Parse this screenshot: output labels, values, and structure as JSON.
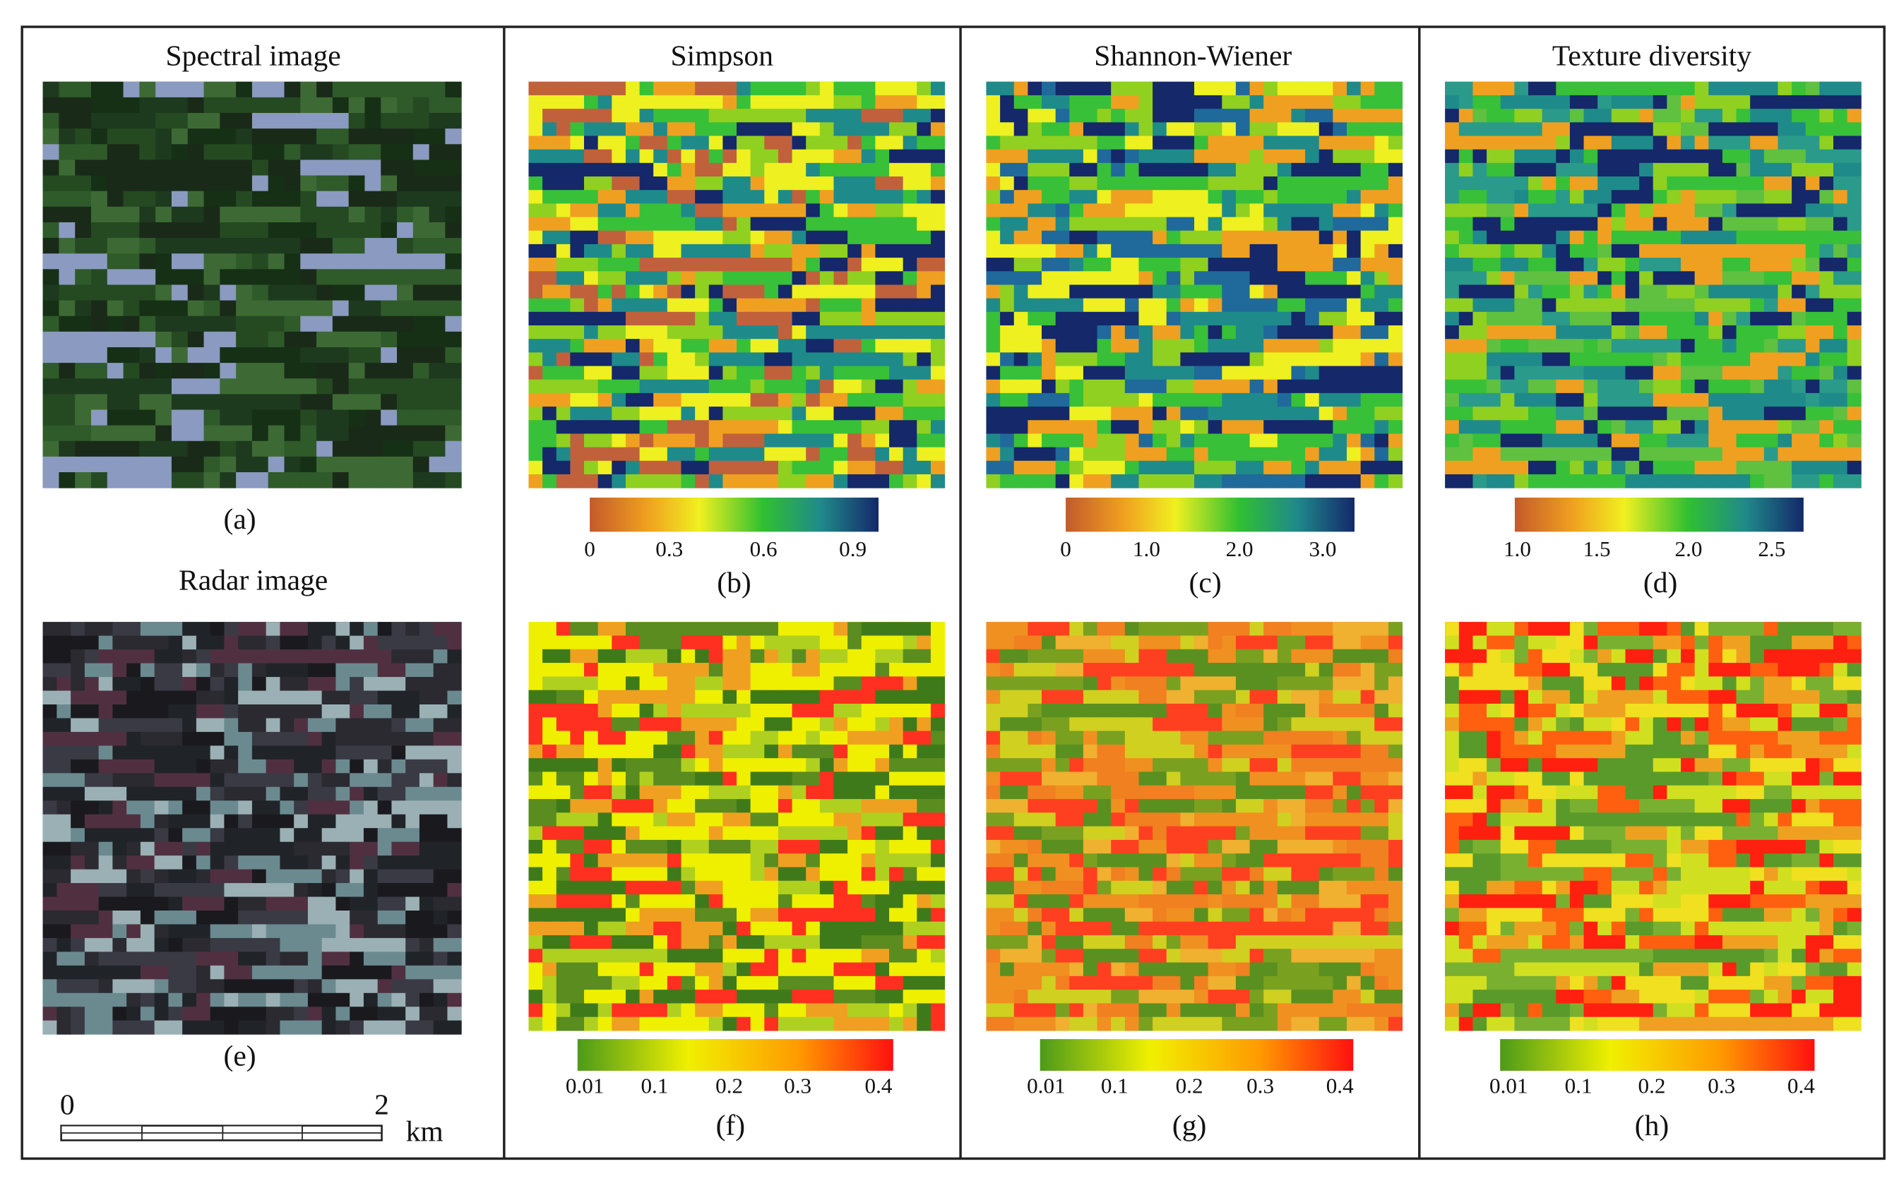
{
  "spectral": {
    "title": "Spectral image",
    "label": "(a)"
  },
  "radar": {
    "title": "Radar image",
    "label": "(e)"
  },
  "scale_bar": {
    "start": "0",
    "end": "2",
    "unit": "km"
  },
  "columns": [
    {
      "title": "Simpson",
      "top": {
        "ticks": [
          "0",
          "0.3",
          "0.6",
          "0.9"
        ],
        "label": "(b)"
      },
      "bottom": {
        "ticks": [
          "0.01",
          "0.1",
          "0.2",
          "0.3",
          "0.4"
        ],
        "label": "(f)"
      }
    },
    {
      "title": "Shannon-Wiener",
      "top": {
        "ticks": [
          "0",
          "1.0",
          "2.0",
          "3.0"
        ],
        "label": "(c)"
      },
      "bottom": {
        "ticks": [
          "0.01",
          "0.1",
          "0.2",
          "0.3",
          "0.4"
        ],
        "label": "(g)"
      }
    },
    {
      "title": "Texture  diversity",
      "top": {
        "ticks": [
          "1.0",
          "1.5",
          "2.0",
          "2.5"
        ],
        "label": "(d)"
      },
      "bottom": {
        "ticks": [
          "0.01",
          "0.1",
          "0.2",
          "0.3",
          "0.4"
        ],
        "label": "(h)"
      }
    }
  ]
}
